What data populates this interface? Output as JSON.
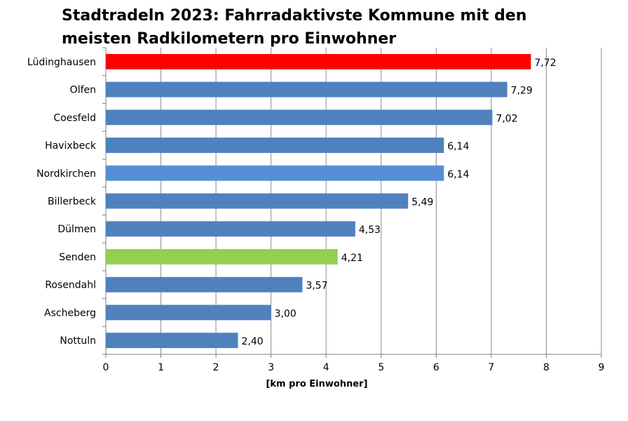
{
  "chart_data": {
    "type": "bar",
    "orientation": "horizontal",
    "title": "Stadtradeln 2023: Fahrradaktivste Kommune mit den meisten Radkilometern pro Einwohner",
    "xlabel": "[km pro Einwohner]",
    "ylabel": "",
    "xlim": [
      0,
      9
    ],
    "x_ticks": [
      "0",
      "1",
      "2",
      "3",
      "4",
      "5",
      "6",
      "7",
      "8",
      "9"
    ],
    "grid": true,
    "categories": [
      "Lüdinghausen",
      "Olfen",
      "Coesfeld",
      "Havixbeck",
      "Nordkirchen",
      "Billerbeck",
      "Dülmen",
      "Senden",
      "Rosendahl",
      "Ascheberg",
      "Nottuln"
    ],
    "values": [
      7.72,
      7.29,
      7.02,
      6.14,
      6.14,
      5.49,
      4.53,
      4.21,
      3.57,
      3.0,
      2.4
    ],
    "value_labels": [
      "7,72",
      "7,29",
      "7,02",
      "6,14",
      "6,14",
      "5,49",
      "4,53",
      "4,21",
      "3,57",
      "3,00",
      "2,40"
    ],
    "colors": [
      "#ff0000",
      "#4f81bd",
      "#4f81bd",
      "#4f81bd",
      "#558ed5",
      "#4f81bd",
      "#4f81bd",
      "#92d050",
      "#4f81bd",
      "#4f81bd",
      "#4f81bd"
    ]
  }
}
